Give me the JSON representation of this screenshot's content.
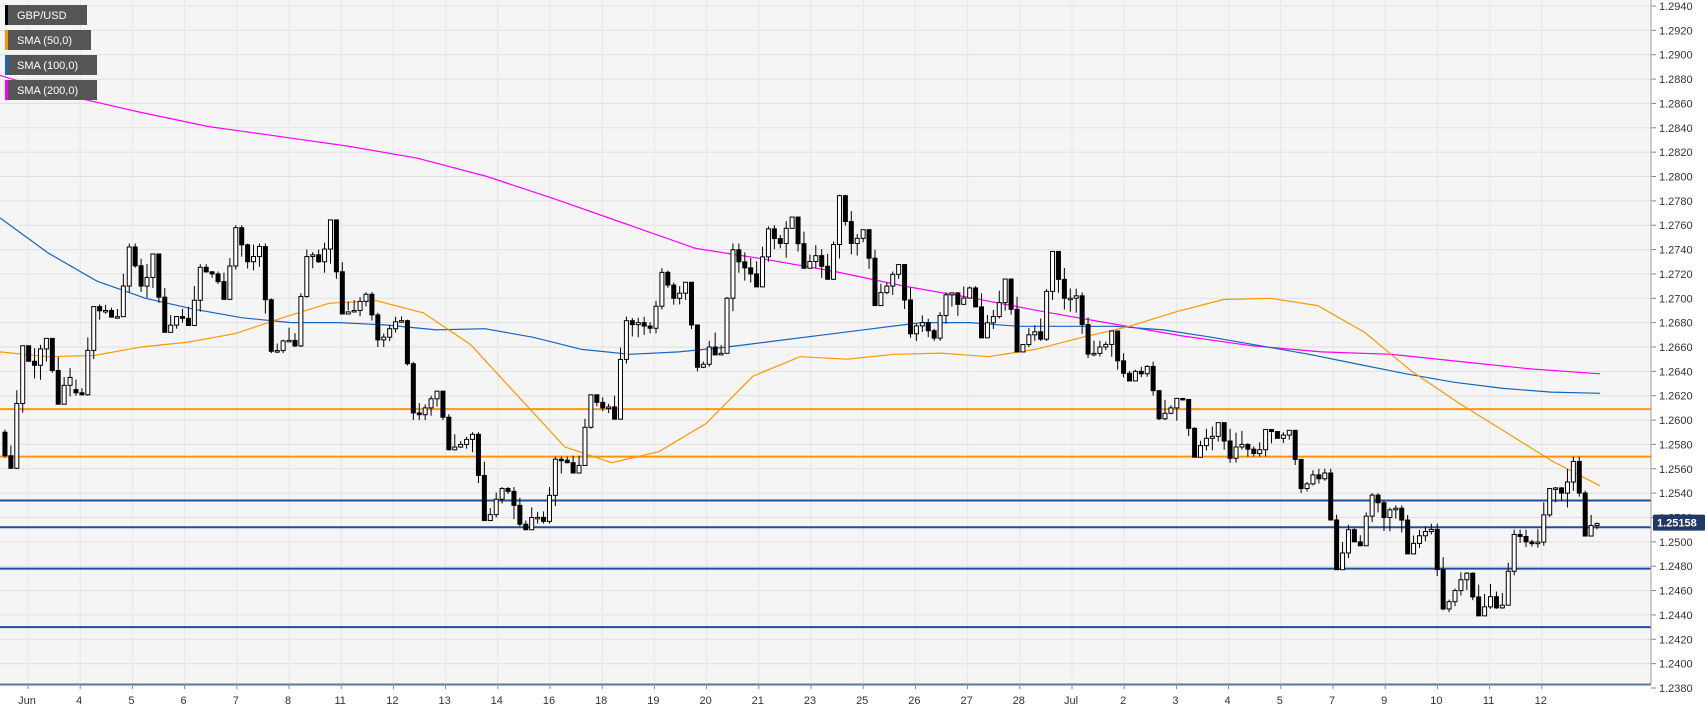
{
  "chart_data": {
    "type": "candlestick",
    "symbol": "GBP/USD",
    "current_price": "1.25158",
    "ylim": [
      1.238,
      1.294
    ],
    "y_ticks": [
      "1.2380",
      "1.2400",
      "1.2420",
      "1.2440",
      "1.2460",
      "1.2480",
      "1.2500",
      "1.2520",
      "1.2540",
      "1.2560",
      "1.2580",
      "1.2600",
      "1.2620",
      "1.2640",
      "1.2660",
      "1.2680",
      "1.2700",
      "1.2720",
      "1.2740",
      "1.2760",
      "1.2780",
      "1.2800",
      "1.2820",
      "1.2840",
      "1.2860",
      "1.2880",
      "1.2900",
      "1.2920",
      "1.2940"
    ],
    "x_ticks": [
      "Jun",
      "4",
      "5",
      "6",
      "7",
      "8",
      "11",
      "12",
      "13",
      "14",
      "16",
      "18",
      "19",
      "20",
      "21",
      "23",
      "25",
      "26",
      "27",
      "28",
      "Jul",
      "2",
      "3",
      "4",
      "5",
      "7",
      "9",
      "10",
      "11",
      "12"
    ],
    "grid": true,
    "legend": [
      {
        "label": "GBP/USD",
        "color": "#000000"
      },
      {
        "label": "SMA (50,0)",
        "color": "#ff9800"
      },
      {
        "label": "SMA (100,0)",
        "color": "#1565c0"
      },
      {
        "label": "SMA (200,0)",
        "color": "#ff00ff"
      }
    ],
    "horizontal_levels": [
      {
        "value": 1.2609,
        "color": "#ff9800"
      },
      {
        "value": 1.257,
        "color": "#ff9800"
      },
      {
        "value": 1.2534,
        "color": "#1f4e9e"
      },
      {
        "value": 1.2512,
        "color": "#1f4e9e"
      },
      {
        "value": 1.2478,
        "color": "#1f4e9e"
      },
      {
        "value": 1.243,
        "color": "#1f4e9e"
      },
      {
        "value": 1.2383,
        "color": "#1f4e9e"
      }
    ],
    "sma50_anchors": [
      1.2656,
      1.2652,
      1.2653,
      1.266,
      1.2664,
      1.2671,
      1.2684,
      1.2696,
      1.2698,
      1.2688,
      1.2662,
      1.262,
      1.2578,
      1.2565,
      1.2574,
      1.2597,
      1.2636,
      1.2652,
      1.265,
      1.2654,
      1.2655,
      1.2652,
      1.2658,
      1.2668,
      1.2677,
      1.2689,
      1.2699,
      1.27,
      1.2694,
      1.2672,
      1.264,
      1.2614,
      1.259,
      1.2566,
      1.2546
    ],
    "sma100_anchors": [
      1.2766,
      1.2737,
      1.2714,
      1.27,
      1.2691,
      1.2684,
      1.268,
      1.268,
      1.2678,
      1.2674,
      1.2675,
      1.2668,
      1.2658,
      1.2654,
      1.2656,
      1.266,
      1.2665,
      1.267,
      1.2675,
      1.268,
      1.268,
      1.2677,
      1.2677,
      1.2677,
      1.2674,
      1.2668,
      1.2661,
      1.2654,
      1.2646,
      1.2638,
      1.2631,
      1.2626,
      1.2623,
      1.2622
    ],
    "sma200_anchors": [
      1.2883,
      1.2866,
      1.2853,
      1.2841,
      1.2833,
      1.2825,
      1.2815,
      1.28,
      1.2781,
      1.2761,
      1.2741,
      1.2732,
      1.2722,
      1.271,
      1.27,
      1.2689,
      1.2679,
      1.2669,
      1.2661,
      1.2656,
      1.2654,
      1.2648,
      1.2642,
      1.2638
    ],
    "daily_ohlc": [
      {
        "o": 1.259,
        "h": 1.266,
        "l": 1.256,
        "c": 1.2645
      },
      {
        "o": 1.2645,
        "h": 1.2665,
        "l": 1.2615,
        "c": 1.2635
      },
      {
        "o": 1.2625,
        "h": 1.2695,
        "l": 1.262,
        "c": 1.269
      },
      {
        "o": 1.269,
        "h": 1.2745,
        "l": 1.2685,
        "c": 1.271
      },
      {
        "o": 1.271,
        "h": 1.2735,
        "l": 1.2675,
        "c": 1.2685
      },
      {
        "o": 1.2685,
        "h": 1.2728,
        "l": 1.268,
        "c": 1.272
      },
      {
        "o": 1.272,
        "h": 1.276,
        "l": 1.27,
        "c": 1.273
      },
      {
        "o": 1.273,
        "h": 1.2745,
        "l": 1.2655,
        "c": 1.2665
      },
      {
        "o": 1.2665,
        "h": 1.274,
        "l": 1.266,
        "c": 1.273
      },
      {
        "o": 1.273,
        "h": 1.276,
        "l": 1.269,
        "c": 1.269
      },
      {
        "o": 1.269,
        "h": 1.2705,
        "l": 1.266,
        "c": 1.2675
      },
      {
        "o": 1.2675,
        "h": 1.2685,
        "l": 1.26,
        "c": 1.261
      },
      {
        "o": 1.261,
        "h": 1.262,
        "l": 1.2575,
        "c": 1.258
      },
      {
        "o": 1.258,
        "h": 1.259,
        "l": 1.252,
        "c": 1.2535
      },
      {
        "o": 1.2535,
        "h": 1.2545,
        "l": 1.251,
        "c": 1.252
      },
      {
        "o": 1.252,
        "h": 1.257,
        "l": 1.2515,
        "c": 1.2565
      },
      {
        "o": 1.2565,
        "h": 1.262,
        "l": 1.256,
        "c": 1.261
      },
      {
        "o": 1.261,
        "h": 1.2685,
        "l": 1.2605,
        "c": 1.268
      },
      {
        "o": 1.268,
        "h": 1.2725,
        "l": 1.267,
        "c": 1.27
      },
      {
        "o": 1.27,
        "h": 1.271,
        "l": 1.264,
        "c": 1.266
      },
      {
        "o": 1.266,
        "h": 1.2745,
        "l": 1.2655,
        "c": 1.2725
      },
      {
        "o": 1.2725,
        "h": 1.276,
        "l": 1.271,
        "c": 1.2745
      },
      {
        "o": 1.2745,
        "h": 1.2765,
        "l": 1.2725,
        "c": 1.2735
      },
      {
        "o": 1.2735,
        "h": 1.2785,
        "l": 1.2715,
        "c": 1.2745
      },
      {
        "o": 1.2745,
        "h": 1.2755,
        "l": 1.27,
        "c": 1.271
      },
      {
        "o": 1.271,
        "h": 1.2722,
        "l": 1.2665,
        "c": 1.268
      },
      {
        "o": 1.268,
        "h": 1.2705,
        "l": 1.2665,
        "c": 1.2695
      },
      {
        "o": 1.2695,
        "h": 1.271,
        "l": 1.267,
        "c": 1.2685
      },
      {
        "o": 1.2685,
        "h": 1.271,
        "l": 1.266,
        "c": 1.267
      },
      {
        "o": 1.267,
        "h": 1.2735,
        "l": 1.2665,
        "c": 1.27
      },
      {
        "o": 1.27,
        "h": 1.2708,
        "l": 1.265,
        "c": 1.266
      },
      {
        "o": 1.266,
        "h": 1.267,
        "l": 1.2635,
        "c": 1.264
      },
      {
        "o": 1.264,
        "h": 1.2648,
        "l": 1.26,
        "c": 1.261
      },
      {
        "o": 1.261,
        "h": 1.2615,
        "l": 1.2575,
        "c": 1.2585
      },
      {
        "o": 1.2585,
        "h": 1.2595,
        "l": 1.2565,
        "c": 1.258
      },
      {
        "o": 1.258,
        "h": 1.259,
        "l": 1.257,
        "c": 1.2585
      },
      {
        "o": 1.2585,
        "h": 1.259,
        "l": 1.254,
        "c": 1.2555
      },
      {
        "o": 1.2555,
        "h": 1.256,
        "l": 1.248,
        "c": 1.251
      },
      {
        "o": 1.251,
        "h": 1.254,
        "l": 1.25,
        "c": 1.252
      },
      {
        "o": 1.252,
        "h": 1.253,
        "l": 1.2495,
        "c": 1.2505
      },
      {
        "o": 1.2505,
        "h": 1.2515,
        "l": 1.244,
        "c": 1.246
      },
      {
        "o": 1.246,
        "h": 1.2475,
        "l": 1.2445,
        "c": 1.2455
      },
      {
        "o": 1.2455,
        "h": 1.251,
        "l": 1.2445,
        "c": 1.25
      },
      {
        "o": 1.25,
        "h": 1.2545,
        "l": 1.2495,
        "c": 1.254
      },
      {
        "o": 1.254,
        "h": 1.257,
        "l": 1.251,
        "c": 1.2515
      }
    ]
  }
}
